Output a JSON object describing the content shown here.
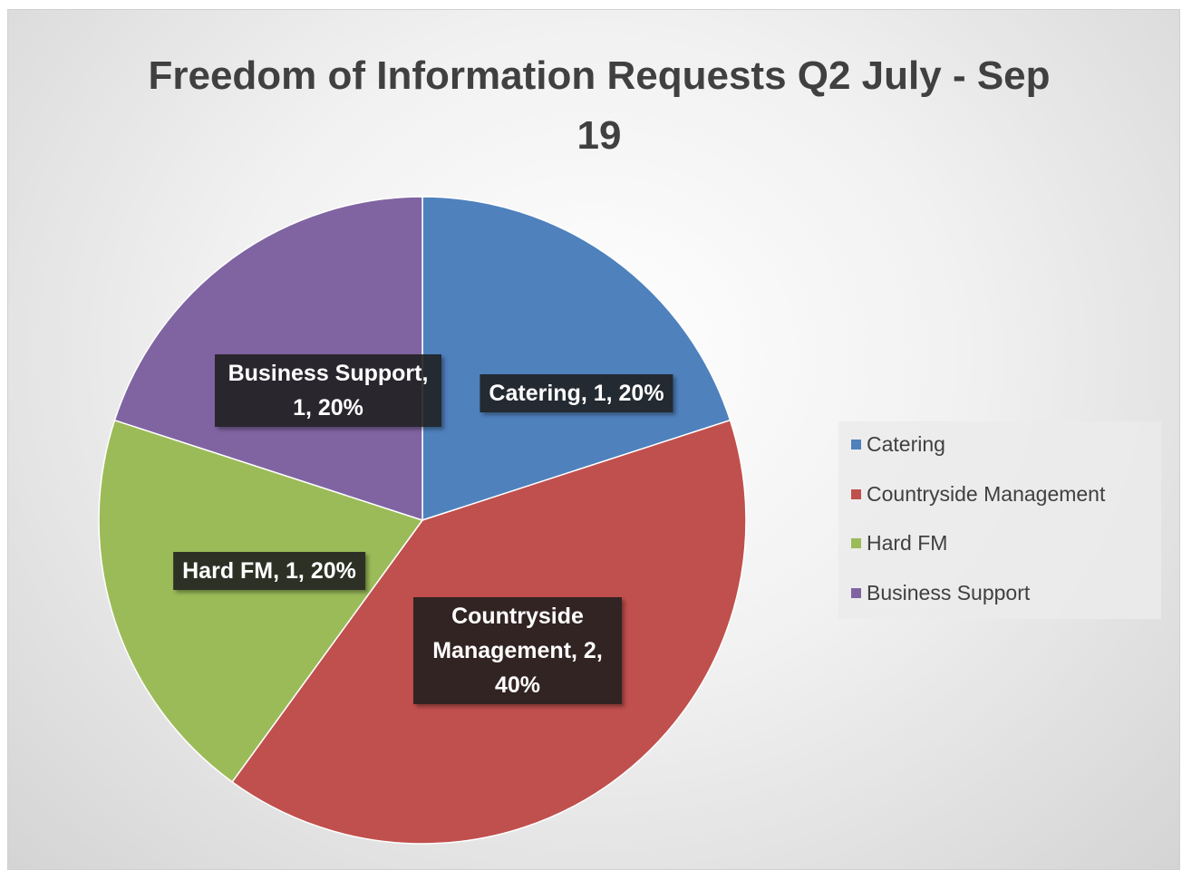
{
  "chart_data": {
    "type": "pie",
    "title": "Freedom of Information Requests Q2 July - Sep 19",
    "categories": [
      "Catering",
      "Countryside Management",
      "Hard FM",
      "Business Support"
    ],
    "values": [
      1,
      2,
      1,
      1
    ],
    "value_labels": [
      "Catering, 1, 20%",
      "Countryside Management, 2, 40%",
      "Hard FM, 1, 20%",
      "Business Support, 1, 20%"
    ],
    "colors": [
      "#4f81bd",
      "#c0504d",
      "#9bbb59",
      "#8064a2"
    ],
    "legend": "right"
  }
}
